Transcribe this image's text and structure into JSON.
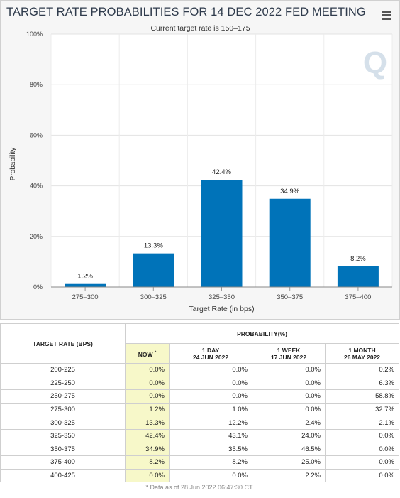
{
  "chart_data": {
    "type": "bar",
    "title": "TARGET RATE PROBABILITIES FOR 14 DEC 2022 FED MEETING",
    "subtitle": "Current target rate is 150–175",
    "xlabel": "Target Rate (in bps)",
    "ylabel": "Probability",
    "categories": [
      "275–300",
      "300–325",
      "325–350",
      "350–375",
      "375–400"
    ],
    "values": [
      1.2,
      13.3,
      42.4,
      34.9,
      8.2
    ],
    "value_labels": [
      "1.2%",
      "13.3%",
      "42.4%",
      "34.9%",
      "8.2%"
    ],
    "ylim": [
      0,
      100
    ],
    "yticks": [
      0,
      20,
      40,
      60,
      80,
      100
    ],
    "ytick_labels": [
      "0%",
      "20%",
      "40%",
      "60%",
      "80%",
      "100%"
    ],
    "grid": true,
    "bar_color": "#0073b9",
    "watermark": "Q"
  },
  "table": {
    "headers": {
      "rate": "TARGET RATE (BPS)",
      "group": "PROBABILITY(%)",
      "now": "NOW",
      "now_mark": "*",
      "day_label": "1 DAY",
      "day_date": "24 JUN 2022",
      "week_label": "1 WEEK",
      "week_date": "17 JUN 2022",
      "month_label": "1 MONTH",
      "month_date": "26 MAY 2022"
    },
    "rows": [
      {
        "rate": "200-225",
        "now": "0.0%",
        "day": "0.0%",
        "week": "0.0%",
        "month": "0.2%"
      },
      {
        "rate": "225-250",
        "now": "0.0%",
        "day": "0.0%",
        "week": "0.0%",
        "month": "6.3%"
      },
      {
        "rate": "250-275",
        "now": "0.0%",
        "day": "0.0%",
        "week": "0.0%",
        "month": "58.8%"
      },
      {
        "rate": "275-300",
        "now": "1.2%",
        "day": "1.0%",
        "week": "0.0%",
        "month": "32.7%"
      },
      {
        "rate": "300-325",
        "now": "13.3%",
        "day": "12.2%",
        "week": "2.4%",
        "month": "2.1%"
      },
      {
        "rate": "325-350",
        "now": "42.4%",
        "day": "43.1%",
        "week": "24.0%",
        "month": "0.0%"
      },
      {
        "rate": "350-375",
        "now": "34.9%",
        "day": "35.5%",
        "week": "46.5%",
        "month": "0.0%"
      },
      {
        "rate": "375-400",
        "now": "8.2%",
        "day": "8.2%",
        "week": "25.0%",
        "month": "0.0%"
      },
      {
        "rate": "400-425",
        "now": "0.0%",
        "day": "0.0%",
        "week": "2.2%",
        "month": "0.0%"
      }
    ],
    "footnote": "* Data as of 28 Jun 2022 06:47:30 CT"
  },
  "icons": {
    "menu": "hamburger-menu-icon"
  }
}
